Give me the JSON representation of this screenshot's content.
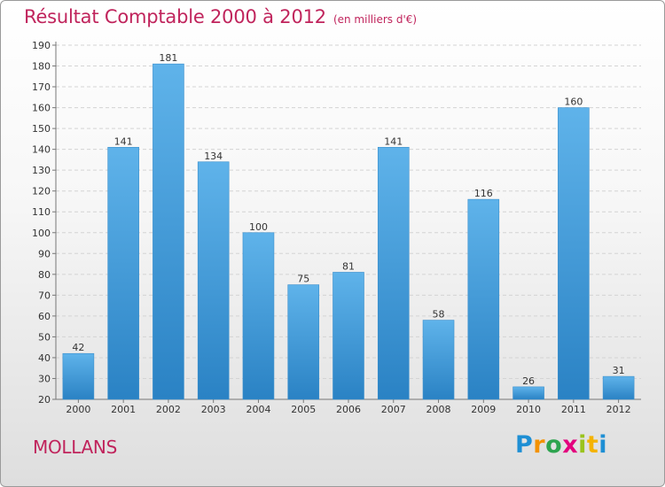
{
  "header": {
    "title": "Résultat Comptable 2000 à 2012",
    "unit": "(en milliers d'€)"
  },
  "footer": {
    "place": "MOLLANS",
    "logo_letters": [
      "P",
      "r",
      "o",
      "x",
      "i",
      "t",
      "i"
    ]
  },
  "colors": {
    "title": "#c0245c",
    "bar_top": "#5fb3ea",
    "bar_bottom": "#2a82c4"
  },
  "chart_data": {
    "type": "bar",
    "title": "Résultat Comptable 2000 à 2012",
    "subtitle": "(en milliers d'€)",
    "xlabel": "",
    "ylabel": "",
    "categories": [
      "2000",
      "2001",
      "2002",
      "2003",
      "2004",
      "2005",
      "2006",
      "2007",
      "2008",
      "2009",
      "2010",
      "2011",
      "2012"
    ],
    "values": [
      42,
      141,
      181,
      134,
      100,
      75,
      81,
      141,
      58,
      116,
      26,
      160,
      31
    ],
    "ylim": [
      20,
      190
    ],
    "ytick_step": 10,
    "grid": true
  }
}
